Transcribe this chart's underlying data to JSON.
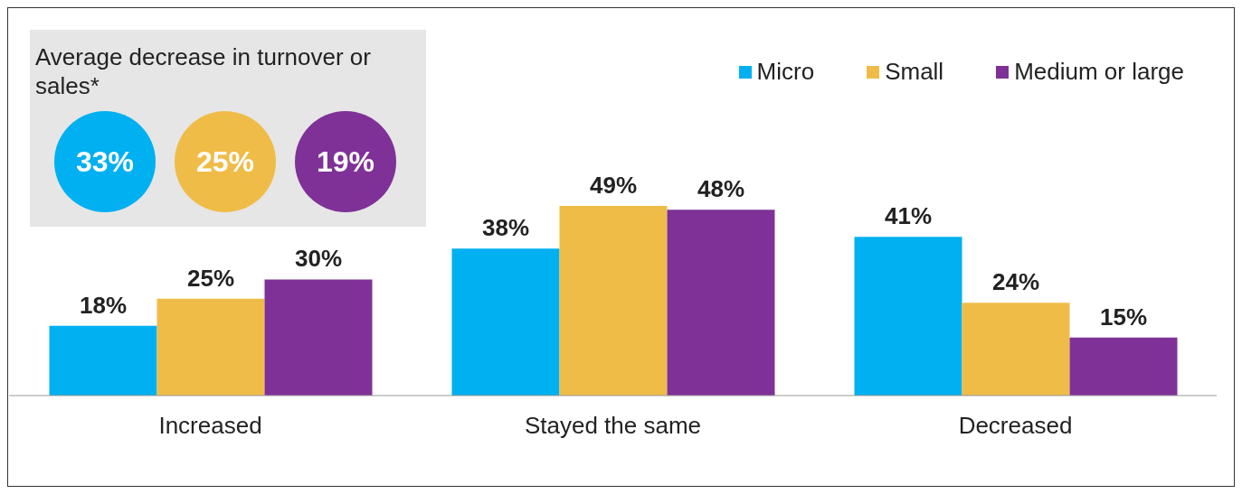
{
  "chart_data": {
    "type": "bar",
    "categories": [
      "Increased",
      "Stayed the same",
      "Decreased"
    ],
    "series": [
      {
        "name": "Micro",
        "color": "#00b0f0",
        "values": [
          18,
          38,
          41
        ],
        "value_labels": [
          "18%",
          "38%",
          "41%"
        ]
      },
      {
        "name": "Small",
        "color": "#f0bc48",
        "values": [
          25,
          49,
          24
        ],
        "value_labels": [
          "25%",
          "49%",
          "24%"
        ]
      },
      {
        "name": "Medium or large",
        "color": "#7f3197",
        "values": [
          30,
          48,
          15
        ],
        "value_labels": [
          "30%",
          "48%",
          "15%"
        ]
      }
    ],
    "legend": "top right",
    "annotations": [
      "Average decrease in turnover or sales*",
      "33%",
      "25%",
      "19%"
    ]
  }
}
